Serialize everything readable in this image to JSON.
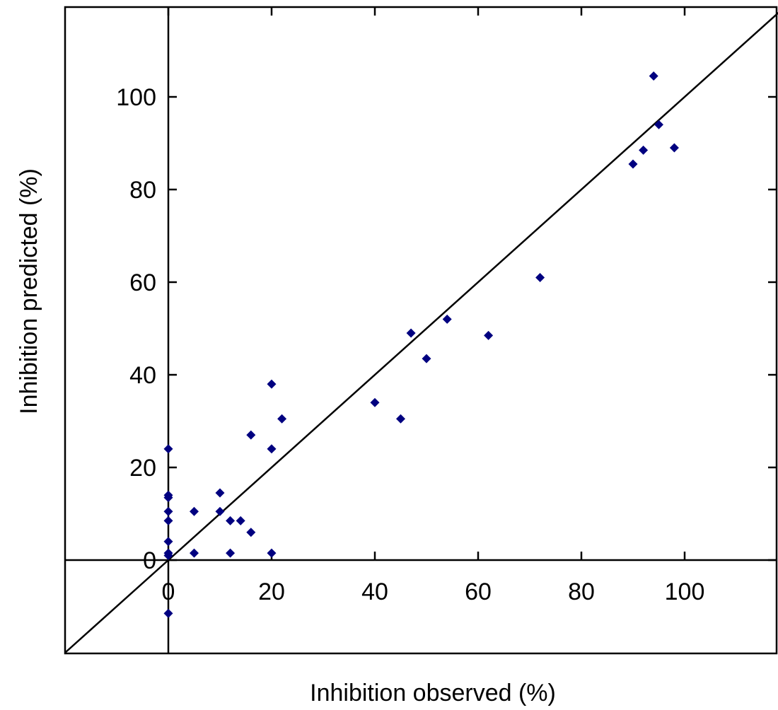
{
  "chart_data": {
    "type": "scatter",
    "title": "",
    "xlabel": "Inhibition observed (%)",
    "ylabel": "Inhibition predicted (%)",
    "xlim": [
      -20,
      120
    ],
    "ylim": [
      -20,
      120
    ],
    "x_ticks": [
      0,
      20,
      40,
      60,
      80,
      100
    ],
    "y_ticks": [
      0,
      20,
      40,
      60,
      80,
      100
    ],
    "x_tick_labels": [
      "0",
      "20",
      "40",
      "60",
      "80",
      "100"
    ],
    "y_tick_labels": [
      "0",
      "20",
      "40",
      "60",
      "80",
      "100"
    ],
    "grid": false,
    "legend": "none",
    "reference_line": {
      "type": "identity",
      "from": [
        -20,
        -20
      ],
      "to": [
        120,
        120
      ]
    },
    "marker": "diamond",
    "marker_color": "#000080",
    "series": [
      {
        "points": [
          [
            0,
            24
          ],
          [
            0,
            14
          ],
          [
            0,
            13.5
          ],
          [
            0,
            10.5
          ],
          [
            0,
            8.5
          ],
          [
            0,
            4
          ],
          [
            0,
            1.5
          ],
          [
            0,
            1
          ],
          [
            0,
            -11.5
          ],
          [
            5,
            10.5
          ],
          [
            5,
            1.5
          ],
          [
            10,
            14.5
          ],
          [
            10,
            10.5
          ],
          [
            12,
            8.5
          ],
          [
            12,
            1.5
          ],
          [
            14,
            8.5
          ],
          [
            16,
            27
          ],
          [
            16,
            6
          ],
          [
            20,
            38
          ],
          [
            20,
            24
          ],
          [
            20,
            1.5
          ],
          [
            22,
            30.5
          ],
          [
            40,
            34
          ],
          [
            45,
            30.5
          ],
          [
            47,
            49
          ],
          [
            50,
            43.5
          ],
          [
            54,
            52
          ],
          [
            62,
            48.5
          ],
          [
            72,
            61
          ],
          [
            90,
            85.5
          ],
          [
            92,
            88.5
          ],
          [
            94,
            104.5
          ],
          [
            95,
            94
          ],
          [
            98,
            89
          ]
        ]
      }
    ]
  }
}
